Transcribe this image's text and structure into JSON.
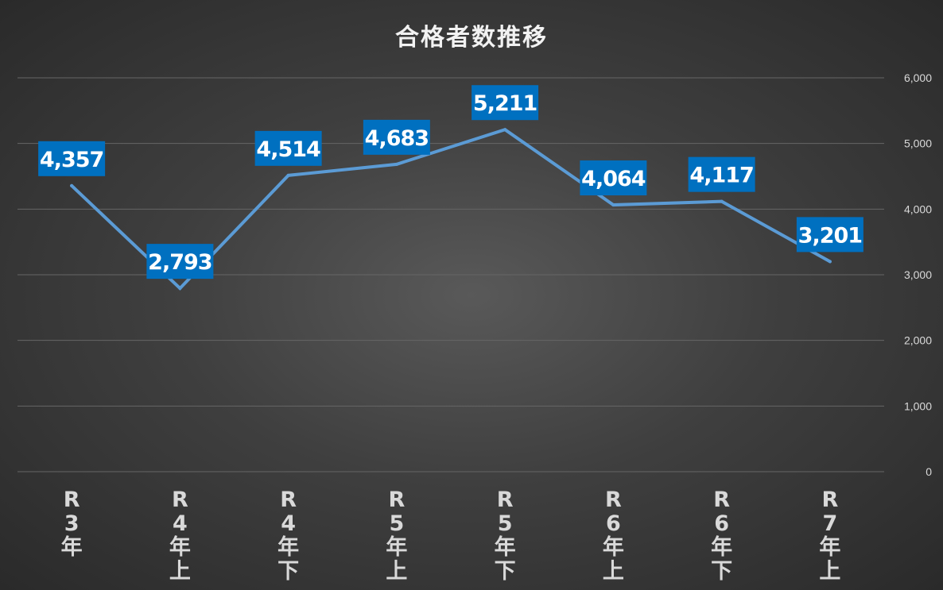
{
  "chart_data": {
    "type": "line",
    "title": "合格者数推移",
    "categories": [
      "R3年",
      "R4年上",
      "R4年下",
      "R5年上",
      "R5年下",
      "R6年上",
      "R6年下",
      "R7年上"
    ],
    "category_lines": [
      [
        "R",
        "3",
        "年"
      ],
      [
        "R",
        "4",
        "年",
        "上"
      ],
      [
        "R",
        "4",
        "年",
        "下"
      ],
      [
        "R",
        "5",
        "年",
        "上"
      ],
      [
        "R",
        "5",
        "年",
        "下"
      ],
      [
        "R",
        "6",
        "年",
        "上"
      ],
      [
        "R",
        "6",
        "年",
        "下"
      ],
      [
        "R",
        "7",
        "年",
        "上"
      ]
    ],
    "values": [
      4357,
      2793,
      4514,
      4683,
      5211,
      4064,
      4117,
      3201
    ],
    "data_labels": [
      "4,357",
      "2,793",
      "4,514",
      "4,683",
      "5,211",
      "4,064",
      "4,117",
      "3,201"
    ],
    "ylim": [
      0,
      6000
    ],
    "y_ticks": [
      0,
      1000,
      2000,
      3000,
      4000,
      5000,
      6000
    ],
    "y_tick_labels": [
      "0",
      "1,000",
      "2,000",
      "3,000",
      "4,000",
      "5,000",
      "6,000"
    ],
    "y_axis_side": "right",
    "grid": true,
    "legend": "none",
    "colors": {
      "line": "#5b9bd5",
      "label_box": "#0070c0",
      "label_text": "#ffffff",
      "grid": "#666666",
      "axis_text": "#d9d9d9",
      "title": "#f2f2f2"
    }
  }
}
